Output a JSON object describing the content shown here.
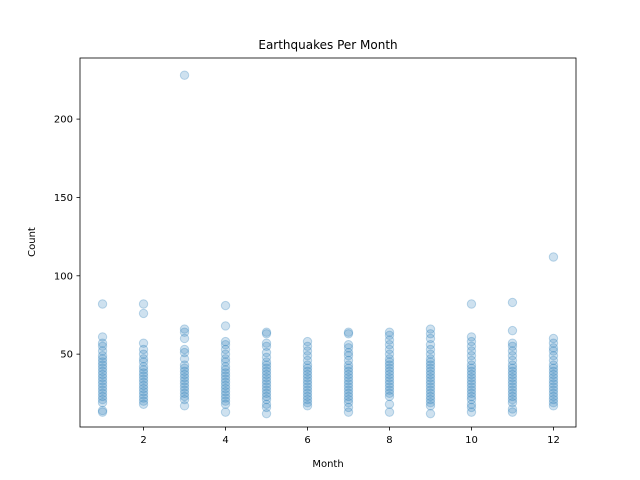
{
  "chart_data": {
    "type": "scatter",
    "title": "Earthquakes Per Month",
    "xlabel": "Month",
    "ylabel": "Count",
    "xlim": [
      0.45,
      12.55
    ],
    "ylim": [
      3.5,
      239
    ],
    "xticks": [
      2,
      4,
      6,
      8,
      10,
      12
    ],
    "yticks": [
      50,
      100,
      150,
      200
    ],
    "grid": false,
    "legend": "none",
    "point_color": "#1f77b4",
    "point_alpha": 0.22,
    "series": [
      {
        "points": [
          [
            1,
            82
          ],
          [
            1,
            61
          ],
          [
            1,
            57
          ],
          [
            1,
            55
          ],
          [
            1,
            52
          ],
          [
            1,
            49
          ],
          [
            1,
            47
          ],
          [
            1,
            45
          ],
          [
            1,
            43
          ],
          [
            1,
            41
          ],
          [
            1,
            39
          ],
          [
            1,
            37
          ],
          [
            1,
            35
          ],
          [
            1,
            33
          ],
          [
            1,
            31
          ],
          [
            1,
            29
          ],
          [
            1,
            27
          ],
          [
            1,
            25
          ],
          [
            1,
            23
          ],
          [
            1,
            21
          ],
          [
            1,
            19
          ],
          [
            1,
            14
          ],
          [
            1,
            13
          ],
          [
            2,
            82
          ],
          [
            2,
            76
          ],
          [
            2,
            57
          ],
          [
            2,
            53
          ],
          [
            2,
            50
          ],
          [
            2,
            47
          ],
          [
            2,
            45
          ],
          [
            2,
            42
          ],
          [
            2,
            40
          ],
          [
            2,
            38
          ],
          [
            2,
            36
          ],
          [
            2,
            34
          ],
          [
            2,
            32
          ],
          [
            2,
            30
          ],
          [
            2,
            28
          ],
          [
            2,
            26
          ],
          [
            2,
            24
          ],
          [
            2,
            22
          ],
          [
            2,
            20
          ],
          [
            2,
            18
          ],
          [
            3,
            228
          ],
          [
            3,
            66
          ],
          [
            3,
            64
          ],
          [
            3,
            60
          ],
          [
            3,
            53
          ],
          [
            3,
            51
          ],
          [
            3,
            47
          ],
          [
            3,
            43
          ],
          [
            3,
            41
          ],
          [
            3,
            39
          ],
          [
            3,
            37
          ],
          [
            3,
            35
          ],
          [
            3,
            33
          ],
          [
            3,
            31
          ],
          [
            3,
            29
          ],
          [
            3,
            27
          ],
          [
            3,
            25
          ],
          [
            3,
            23
          ],
          [
            3,
            21
          ],
          [
            3,
            17
          ],
          [
            4,
            81
          ],
          [
            4,
            68
          ],
          [
            4,
            58
          ],
          [
            4,
            56
          ],
          [
            4,
            53
          ],
          [
            4,
            50
          ],
          [
            4,
            47
          ],
          [
            4,
            45
          ],
          [
            4,
            42
          ],
          [
            4,
            40
          ],
          [
            4,
            38
          ],
          [
            4,
            36
          ],
          [
            4,
            34
          ],
          [
            4,
            32
          ],
          [
            4,
            30
          ],
          [
            4,
            28
          ],
          [
            4,
            26
          ],
          [
            4,
            24
          ],
          [
            4,
            22
          ],
          [
            4,
            20
          ],
          [
            4,
            18
          ],
          [
            4,
            13
          ],
          [
            5,
            64
          ],
          [
            5,
            63
          ],
          [
            5,
            57
          ],
          [
            5,
            55
          ],
          [
            5,
            51
          ],
          [
            5,
            48
          ],
          [
            5,
            45
          ],
          [
            5,
            43
          ],
          [
            5,
            41
          ],
          [
            5,
            39
          ],
          [
            5,
            37
          ],
          [
            5,
            35
          ],
          [
            5,
            33
          ],
          [
            5,
            31
          ],
          [
            5,
            29
          ],
          [
            5,
            27
          ],
          [
            5,
            25
          ],
          [
            5,
            23
          ],
          [
            5,
            21
          ],
          [
            5,
            18
          ],
          [
            5,
            16
          ],
          [
            5,
            12
          ],
          [
            6,
            58
          ],
          [
            6,
            55
          ],
          [
            6,
            52
          ],
          [
            6,
            49
          ],
          [
            6,
            46
          ],
          [
            6,
            43
          ],
          [
            6,
            41
          ],
          [
            6,
            39
          ],
          [
            6,
            37
          ],
          [
            6,
            35
          ],
          [
            6,
            33
          ],
          [
            6,
            31
          ],
          [
            6,
            29
          ],
          [
            6,
            27
          ],
          [
            6,
            25
          ],
          [
            6,
            23
          ],
          [
            6,
            21
          ],
          [
            6,
            19
          ],
          [
            6,
            17
          ],
          [
            7,
            64
          ],
          [
            7,
            63
          ],
          [
            7,
            56
          ],
          [
            7,
            54
          ],
          [
            7,
            51
          ],
          [
            7,
            49
          ],
          [
            7,
            46
          ],
          [
            7,
            43
          ],
          [
            7,
            41
          ],
          [
            7,
            39
          ],
          [
            7,
            37
          ],
          [
            7,
            35
          ],
          [
            7,
            33
          ],
          [
            7,
            31
          ],
          [
            7,
            29
          ],
          [
            7,
            27
          ],
          [
            7,
            25
          ],
          [
            7,
            23
          ],
          [
            7,
            21
          ],
          [
            7,
            19
          ],
          [
            7,
            16
          ],
          [
            7,
            13
          ],
          [
            8,
            64
          ],
          [
            8,
            62
          ],
          [
            8,
            59
          ],
          [
            8,
            56
          ],
          [
            8,
            53
          ],
          [
            8,
            50
          ],
          [
            8,
            47
          ],
          [
            8,
            45
          ],
          [
            8,
            43
          ],
          [
            8,
            41
          ],
          [
            8,
            39
          ],
          [
            8,
            37
          ],
          [
            8,
            35
          ],
          [
            8,
            33
          ],
          [
            8,
            31
          ],
          [
            8,
            29
          ],
          [
            8,
            27
          ],
          [
            8,
            25
          ],
          [
            8,
            23
          ],
          [
            8,
            18
          ],
          [
            8,
            13
          ],
          [
            9,
            66
          ],
          [
            9,
            63
          ],
          [
            9,
            60
          ],
          [
            9,
            56
          ],
          [
            9,
            53
          ],
          [
            9,
            50
          ],
          [
            9,
            47
          ],
          [
            9,
            45
          ],
          [
            9,
            43
          ],
          [
            9,
            41
          ],
          [
            9,
            39
          ],
          [
            9,
            37
          ],
          [
            9,
            35
          ],
          [
            9,
            33
          ],
          [
            9,
            31
          ],
          [
            9,
            29
          ],
          [
            9,
            27
          ],
          [
            9,
            25
          ],
          [
            9,
            23
          ],
          [
            9,
            21
          ],
          [
            9,
            19
          ],
          [
            9,
            17
          ],
          [
            9,
            12
          ],
          [
            10,
            82
          ],
          [
            10,
            61
          ],
          [
            10,
            58
          ],
          [
            10,
            55
          ],
          [
            10,
            52
          ],
          [
            10,
            49
          ],
          [
            10,
            46
          ],
          [
            10,
            43
          ],
          [
            10,
            41
          ],
          [
            10,
            39
          ],
          [
            10,
            37
          ],
          [
            10,
            35
          ],
          [
            10,
            33
          ],
          [
            10,
            31
          ],
          [
            10,
            29
          ],
          [
            10,
            27
          ],
          [
            10,
            25
          ],
          [
            10,
            23
          ],
          [
            10,
            21
          ],
          [
            10,
            18
          ],
          [
            10,
            16
          ],
          [
            10,
            13
          ],
          [
            11,
            83
          ],
          [
            11,
            65
          ],
          [
            11,
            57
          ],
          [
            11,
            55
          ],
          [
            11,
            52
          ],
          [
            11,
            49
          ],
          [
            11,
            46
          ],
          [
            11,
            43
          ],
          [
            11,
            41
          ],
          [
            11,
            39
          ],
          [
            11,
            37
          ],
          [
            11,
            35
          ],
          [
            11,
            33
          ],
          [
            11,
            31
          ],
          [
            11,
            29
          ],
          [
            11,
            27
          ],
          [
            11,
            25
          ],
          [
            11,
            23
          ],
          [
            11,
            21
          ],
          [
            11,
            19
          ],
          [
            11,
            15
          ],
          [
            11,
            13
          ],
          [
            12,
            112
          ],
          [
            12,
            60
          ],
          [
            12,
            57
          ],
          [
            12,
            54
          ],
          [
            12,
            52
          ],
          [
            12,
            49
          ],
          [
            12,
            46
          ],
          [
            12,
            43
          ],
          [
            12,
            41
          ],
          [
            12,
            39
          ],
          [
            12,
            37
          ],
          [
            12,
            35
          ],
          [
            12,
            33
          ],
          [
            12,
            31
          ],
          [
            12,
            29
          ],
          [
            12,
            27
          ],
          [
            12,
            25
          ],
          [
            12,
            23
          ],
          [
            12,
            21
          ],
          [
            12,
            19
          ],
          [
            12,
            17
          ]
        ]
      }
    ]
  }
}
